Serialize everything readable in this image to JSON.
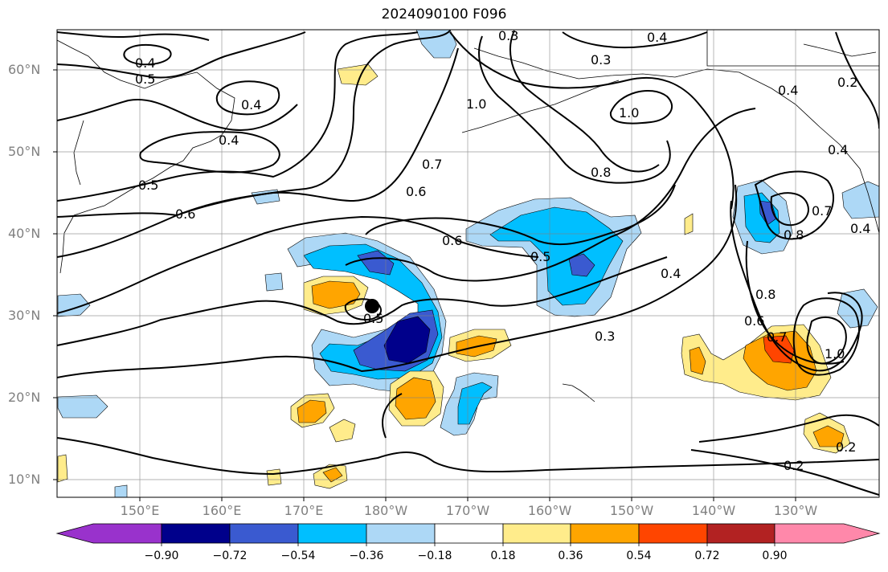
{
  "title": "2024090100 F096",
  "lat_labels": [
    "60°N",
    "50°N",
    "40°N",
    "30°N",
    "20°N",
    "10°N"
  ],
  "lon_labels": [
    "150°E",
    "160°E",
    "170°E",
    "180°W",
    "170°W",
    "160°W",
    "150°W",
    "140°W",
    "130°W"
  ],
  "colorbar": {
    "tick_labels": [
      "−0.90",
      "−0.72",
      "−0.54",
      "−0.36",
      "−0.18",
      "0.18",
      "0.36",
      "0.54",
      "0.72",
      "0.90"
    ],
    "colors": [
      "#9932cc",
      "#00008b",
      "#3a5ad0",
      "#00bfff",
      "#add8f6",
      "#ffffff",
      "#ffec8b",
      "#ffa500",
      "#ff4500",
      "#b22222",
      "#ff88aa"
    ]
  },
  "contour_labels": [
    "0.4",
    "0.5",
    "0.4",
    "0.4",
    "0.5",
    "0.6",
    "0.4",
    "0.3",
    "1.0",
    "1.0",
    "0.7",
    "0.6",
    "0.8",
    "0.6",
    "0.5",
    "0.4",
    "0.5",
    "0.3",
    "0.8",
    "0.7",
    "0.8",
    "0.6",
    "0.7",
    "1.0",
    "0.2",
    "0.2",
    "0.2",
    "0.3",
    "0.4",
    "0.4",
    "0.4"
  ],
  "storm_marker": "tropical-cyclone-center"
}
